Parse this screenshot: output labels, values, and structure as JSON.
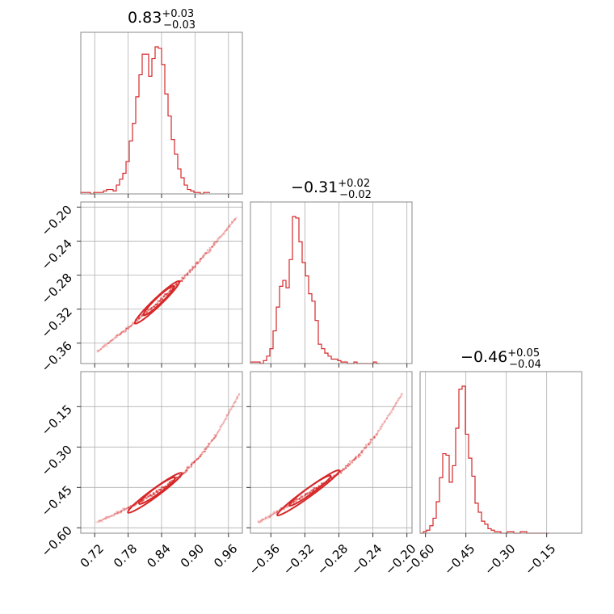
{
  "chart_data": {
    "type": "corner",
    "color": "#d62728",
    "parameters": [
      {
        "value": "0.83",
        "plus": "+0.03",
        "minus": "−0.03"
      },
      {
        "value": "−0.31",
        "plus": "+0.02",
        "minus": "−0.02"
      },
      {
        "value": "−0.46",
        "plus": "+0.05",
        "minus": "−0.04"
      }
    ],
    "axes": {
      "p0": {
        "range": [
          0.695,
          0.985
        ],
        "ticks": [
          0.72,
          0.78,
          0.84,
          0.9,
          0.96
        ],
        "tick_labels": [
          "0.72",
          "0.78",
          "0.84",
          "0.90",
          "0.96"
        ]
      },
      "p1": {
        "range": [
          -0.384,
          -0.194
        ],
        "ticks": [
          -0.36,
          -0.32,
          -0.28,
          -0.24,
          -0.2
        ],
        "tick_labels": [
          "−0.36",
          "−0.32",
          "−0.28",
          "−0.24",
          "−0.20"
        ]
      },
      "p2": {
        "range": [
          -0.62,
          -0.02
        ],
        "ticks": [
          -0.6,
          -0.45,
          -0.3,
          -0.15
        ],
        "tick_labels": [
          "−0.60",
          "−0.45",
          "−0.30",
          "−0.15"
        ]
      }
    },
    "histograms": [
      {
        "param": "p0",
        "bin_start": 0.695,
        "bin_width": 0.0058,
        "counts": [
          1,
          1,
          1,
          0,
          1,
          1,
          1,
          2,
          3,
          3,
          2,
          6,
          10,
          14,
          22,
          36,
          48,
          66,
          81,
          95,
          95,
          80,
          92,
          100,
          99,
          88,
          68,
          53,
          37,
          27,
          17,
          11,
          6,
          3,
          2,
          1,
          1,
          0,
          1,
          1
        ]
      },
      {
        "param": "p1",
        "bin_start": -0.384,
        "bin_width": 0.0038,
        "counts": [
          1,
          1,
          1,
          0,
          2,
          5,
          10,
          22,
          38,
          52,
          56,
          51,
          70,
          99,
          98,
          82,
          68,
          59,
          47,
          42,
          29,
          13,
          10,
          7,
          5,
          3,
          3,
          2,
          1,
          1,
          0,
          0,
          1,
          0,
          0,
          0,
          0,
          0,
          1,
          0
        ]
      },
      {
        "param": "p2",
        "bin_start": -0.62,
        "bin_width": 0.012,
        "counts": [
          0,
          1,
          2,
          5,
          10,
          21,
          37,
          53,
          52,
          34,
          45,
          70,
          96,
          98,
          66,
          50,
          38,
          20,
          14,
          8,
          6,
          3,
          2,
          1,
          1,
          0,
          0,
          1,
          1,
          0,
          0,
          1,
          1,
          0,
          0,
          0,
          0,
          0,
          0,
          0
        ]
      }
    ],
    "scatter_panels": [
      {
        "x": "p0",
        "y": "p1",
        "curve": [
          [
            0.725,
            -0.37
          ],
          [
            0.76,
            -0.352
          ],
          [
            0.79,
            -0.337
          ],
          [
            0.82,
            -0.32
          ],
          [
            0.85,
            -0.302
          ],
          [
            0.88,
            -0.283
          ],
          [
            0.91,
            -0.262
          ],
          [
            0.94,
            -0.24
          ],
          [
            0.975,
            -0.212
          ]
        ],
        "contours": [
          {
            "cx": 0.832,
            "cy": -0.312,
            "r1": 0.055,
            "r2": 0.006
          },
          {
            "cx": 0.835,
            "cy": -0.31,
            "r1": 0.038,
            "r2": 0.004
          }
        ]
      },
      {
        "x": "p0",
        "y": "p2",
        "curve": [
          [
            0.725,
            -0.58
          ],
          [
            0.76,
            -0.545
          ],
          [
            0.79,
            -0.515
          ],
          [
            0.82,
            -0.482
          ],
          [
            0.85,
            -0.442
          ],
          [
            0.88,
            -0.395
          ],
          [
            0.91,
            -0.333
          ],
          [
            0.94,
            -0.25
          ],
          [
            0.98,
            -0.1
          ]
        ],
        "contours": [
          {
            "cx": 0.828,
            "cy": -0.47,
            "r1": 0.06,
            "r2": 0.012
          },
          {
            "cx": 0.832,
            "cy": -0.462,
            "r1": 0.04,
            "r2": 0.008
          }
        ]
      },
      {
        "x": "p1",
        "y": "p2",
        "curve": [
          [
            -0.375,
            -0.58
          ],
          [
            -0.355,
            -0.545
          ],
          [
            -0.335,
            -0.508
          ],
          [
            -0.315,
            -0.47
          ],
          [
            -0.295,
            -0.43
          ],
          [
            -0.275,
            -0.385
          ],
          [
            -0.255,
            -0.325
          ],
          [
            -0.235,
            -0.25
          ],
          [
            -0.205,
            -0.1
          ]
        ],
        "contours": [
          {
            "cx": -0.316,
            "cy": -0.47,
            "r1": 0.045,
            "r2": 0.01
          },
          {
            "cx": -0.314,
            "cy": -0.462,
            "r1": 0.03,
            "r2": 0.007
          }
        ]
      }
    ]
  }
}
